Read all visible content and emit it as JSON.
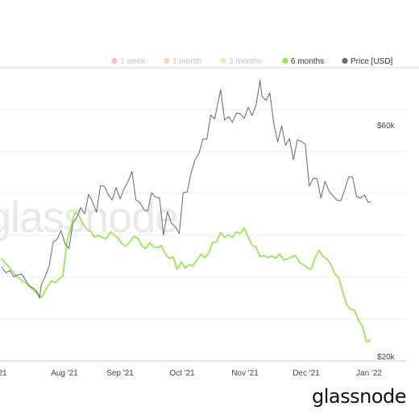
{
  "brand": "glassnode",
  "watermark": "glassnode",
  "chart_data": {
    "type": "line",
    "legend": [
      {
        "label": "1 week",
        "color": "#f08a8a",
        "active": false
      },
      {
        "label": "1 month",
        "color": "#f4b07a",
        "active": false
      },
      {
        "label": "3 months",
        "color": "#f5d36a",
        "active": false
      },
      {
        "label": "6 months",
        "color": "#9be84a",
        "active": true
      },
      {
        "label": "Price [USD]",
        "color": "#666666",
        "active": true
      }
    ],
    "x_tick_labels": [
      "21",
      "Aug '21",
      "Sep '21",
      "Oct '21",
      "Nov '21",
      "Dec '21",
      "Jan '22"
    ],
    "y_tick_labels": [
      "$60k",
      "$20k"
    ],
    "x_range": [
      "2021-06-30",
      "2022-01-05"
    ],
    "y_range_usd": [
      20000,
      70000
    ],
    "grid": true,
    "series": [
      {
        "name": "Price [USD]",
        "color": "#666666",
        "points": [
          [
            "2021-07-01",
            35100
          ],
          [
            "2021-07-03",
            34200
          ],
          [
            "2021-07-05",
            34600
          ],
          [
            "2021-07-07",
            33500
          ],
          [
            "2021-07-09",
            33800
          ],
          [
            "2021-07-11",
            34000
          ],
          [
            "2021-07-13",
            32900
          ],
          [
            "2021-07-15",
            31900
          ],
          [
            "2021-07-17",
            31500
          ],
          [
            "2021-07-19",
            30800
          ],
          [
            "2021-07-20",
            29800
          ],
          [
            "2021-07-21",
            32100
          ],
          [
            "2021-07-23",
            33600
          ],
          [
            "2021-07-25",
            35400
          ],
          [
            "2021-07-27",
            39500
          ],
          [
            "2021-07-29",
            40000
          ],
          [
            "2021-07-31",
            41500
          ],
          [
            "2021-08-02",
            39200
          ],
          [
            "2021-08-04",
            38400
          ],
          [
            "2021-08-06",
            42800
          ],
          [
            "2021-08-08",
            43800
          ],
          [
            "2021-08-10",
            45500
          ],
          [
            "2021-08-12",
            44400
          ],
          [
            "2021-08-14",
            47800
          ],
          [
            "2021-08-16",
            46500
          ],
          [
            "2021-08-18",
            44700
          ],
          [
            "2021-08-20",
            49300
          ],
          [
            "2021-08-22",
            49200
          ],
          [
            "2021-08-24",
            47700
          ],
          [
            "2021-08-26",
            46800
          ],
          [
            "2021-08-28",
            49000
          ],
          [
            "2021-08-30",
            47000
          ],
          [
            "2021-09-01",
            48800
          ],
          [
            "2021-09-03",
            50000
          ],
          [
            "2021-09-05",
            51800
          ],
          [
            "2021-09-07",
            46800
          ],
          [
            "2021-09-09",
            46400
          ],
          [
            "2021-09-11",
            45200
          ],
          [
            "2021-09-13",
            44900
          ],
          [
            "2021-09-15",
            48100
          ],
          [
            "2021-09-17",
            47300
          ],
          [
            "2021-09-19",
            47200
          ],
          [
            "2021-09-21",
            40700
          ],
          [
            "2021-09-23",
            44800
          ],
          [
            "2021-09-25",
            42800
          ],
          [
            "2021-09-27",
            42200
          ],
          [
            "2021-09-29",
            41000
          ],
          [
            "2021-10-01",
            48100
          ],
          [
            "2021-10-03",
            48200
          ],
          [
            "2021-10-05",
            51500
          ],
          [
            "2021-10-07",
            53800
          ],
          [
            "2021-10-09",
            54900
          ],
          [
            "2021-10-11",
            57400
          ],
          [
            "2021-10-13",
            57400
          ],
          [
            "2021-10-15",
            61600
          ],
          [
            "2021-10-17",
            60900
          ],
          [
            "2021-10-19",
            64300
          ],
          [
            "2021-10-20",
            66000
          ],
          [
            "2021-10-22",
            60700
          ],
          [
            "2021-10-24",
            61300
          ],
          [
            "2021-10-26",
            60300
          ],
          [
            "2021-10-28",
            61900
          ],
          [
            "2021-10-30",
            61800
          ],
          [
            "2021-11-01",
            61000
          ],
          [
            "2021-11-03",
            62900
          ],
          [
            "2021-11-05",
            61500
          ],
          [
            "2021-11-07",
            63300
          ],
          [
            "2021-11-09",
            67600
          ],
          [
            "2021-11-10",
            64900
          ],
          [
            "2021-11-12",
            64100
          ],
          [
            "2021-11-14",
            65400
          ],
          [
            "2021-11-16",
            60100
          ],
          [
            "2021-11-18",
            56900
          ],
          [
            "2021-11-20",
            59700
          ],
          [
            "2021-11-22",
            56300
          ],
          [
            "2021-11-24",
            57500
          ],
          [
            "2021-11-26",
            53800
          ],
          [
            "2021-11-28",
            57300
          ],
          [
            "2021-11-30",
            57000
          ],
          [
            "2021-12-02",
            56500
          ],
          [
            "2021-12-04",
            49200
          ],
          [
            "2021-12-06",
            50600
          ],
          [
            "2021-12-08",
            50500
          ],
          [
            "2021-12-10",
            47100
          ],
          [
            "2021-12-12",
            50100
          ],
          [
            "2021-12-14",
            48400
          ],
          [
            "2021-12-16",
            47600
          ],
          [
            "2021-12-18",
            46800
          ],
          [
            "2021-12-20",
            46700
          ],
          [
            "2021-12-22",
            48600
          ],
          [
            "2021-12-24",
            50800
          ],
          [
            "2021-12-26",
            50800
          ],
          [
            "2021-12-28",
            47500
          ],
          [
            "2021-12-30",
            47100
          ],
          [
            "2022-01-01",
            47700
          ],
          [
            "2022-01-03",
            46400
          ],
          [
            "2022-01-04",
            46500
          ]
        ]
      },
      {
        "name": "6 months",
        "color": "#9be84a",
        "points": [
          [
            "2021-07-01",
            36600
          ],
          [
            "2021-07-03",
            35800
          ],
          [
            "2021-07-05",
            35000
          ],
          [
            "2021-07-07",
            34200
          ],
          [
            "2021-07-09",
            33400
          ],
          [
            "2021-07-11",
            32900
          ],
          [
            "2021-07-13",
            32400
          ],
          [
            "2021-07-15",
            31800
          ],
          [
            "2021-07-17",
            31200
          ],
          [
            "2021-07-19",
            30500
          ],
          [
            "2021-07-21",
            29900
          ],
          [
            "2021-07-22",
            30400
          ],
          [
            "2021-07-24",
            31700
          ],
          [
            "2021-07-26",
            32800
          ],
          [
            "2021-07-28",
            32500
          ],
          [
            "2021-07-30",
            33100
          ],
          [
            "2021-08-01",
            33700
          ],
          [
            "2021-08-03",
            39600
          ],
          [
            "2021-08-05",
            42100
          ],
          [
            "2021-08-07",
            44700
          ],
          [
            "2021-08-09",
            44200
          ],
          [
            "2021-08-11",
            42800
          ],
          [
            "2021-08-13",
            41700
          ],
          [
            "2021-08-15",
            41400
          ],
          [
            "2021-08-17",
            40400
          ],
          [
            "2021-08-19",
            40700
          ],
          [
            "2021-08-21",
            40300
          ],
          [
            "2021-08-23",
            40100
          ],
          [
            "2021-08-25",
            41300
          ],
          [
            "2021-08-27",
            40700
          ],
          [
            "2021-08-29",
            40200
          ],
          [
            "2021-08-31",
            39200
          ],
          [
            "2021-09-02",
            38800
          ],
          [
            "2021-09-04",
            39600
          ],
          [
            "2021-09-06",
            40500
          ],
          [
            "2021-09-08",
            40200
          ],
          [
            "2021-09-10",
            38900
          ],
          [
            "2021-09-12",
            38400
          ],
          [
            "2021-09-14",
            39400
          ],
          [
            "2021-09-16",
            38700
          ],
          [
            "2021-09-18",
            38600
          ],
          [
            "2021-09-20",
            38900
          ],
          [
            "2021-09-22",
            37400
          ],
          [
            "2021-09-24",
            36700
          ],
          [
            "2021-09-26",
            36900
          ],
          [
            "2021-09-28",
            34800
          ],
          [
            "2021-09-30",
            36100
          ],
          [
            "2021-10-02",
            35000
          ],
          [
            "2021-10-04",
            35600
          ],
          [
            "2021-10-06",
            35400
          ],
          [
            "2021-10-08",
            36400
          ],
          [
            "2021-10-10",
            37400
          ],
          [
            "2021-10-12",
            36800
          ],
          [
            "2021-10-14",
            37600
          ],
          [
            "2021-10-16",
            39500
          ],
          [
            "2021-10-18",
            39600
          ],
          [
            "2021-10-20",
            41200
          ],
          [
            "2021-10-22",
            40300
          ],
          [
            "2021-10-24",
            40800
          ],
          [
            "2021-10-26",
            40300
          ],
          [
            "2021-10-28",
            41300
          ],
          [
            "2021-10-30",
            41000
          ],
          [
            "2021-11-01",
            41900
          ],
          [
            "2021-11-03",
            40400
          ],
          [
            "2021-11-05",
            39000
          ],
          [
            "2021-11-07",
            38600
          ],
          [
            "2021-11-09",
            37000
          ],
          [
            "2021-11-11",
            37200
          ],
          [
            "2021-11-13",
            36800
          ],
          [
            "2021-11-15",
            37100
          ],
          [
            "2021-11-17",
            36700
          ],
          [
            "2021-11-19",
            37500
          ],
          [
            "2021-11-21",
            36400
          ],
          [
            "2021-11-23",
            36600
          ],
          [
            "2021-11-25",
            36900
          ],
          [
            "2021-11-27",
            37200
          ],
          [
            "2021-11-29",
            36000
          ],
          [
            "2021-12-01",
            35600
          ],
          [
            "2021-12-03",
            35100
          ],
          [
            "2021-12-05",
            34800
          ],
          [
            "2021-12-07",
            36800
          ],
          [
            "2021-12-09",
            38100
          ],
          [
            "2021-12-11",
            37000
          ],
          [
            "2021-12-13",
            36600
          ],
          [
            "2021-12-15",
            35600
          ],
          [
            "2021-12-17",
            34000
          ],
          [
            "2021-12-19",
            33400
          ],
          [
            "2021-12-21",
            30900
          ],
          [
            "2021-12-23",
            28700
          ],
          [
            "2021-12-25",
            27800
          ],
          [
            "2021-12-27",
            27700
          ],
          [
            "2021-12-29",
            25900
          ],
          [
            "2021-12-31",
            24900
          ],
          [
            "2022-01-02",
            22300
          ],
          [
            "2022-01-03",
            22200
          ],
          [
            "2022-01-04",
            22600
          ]
        ]
      }
    ]
  }
}
